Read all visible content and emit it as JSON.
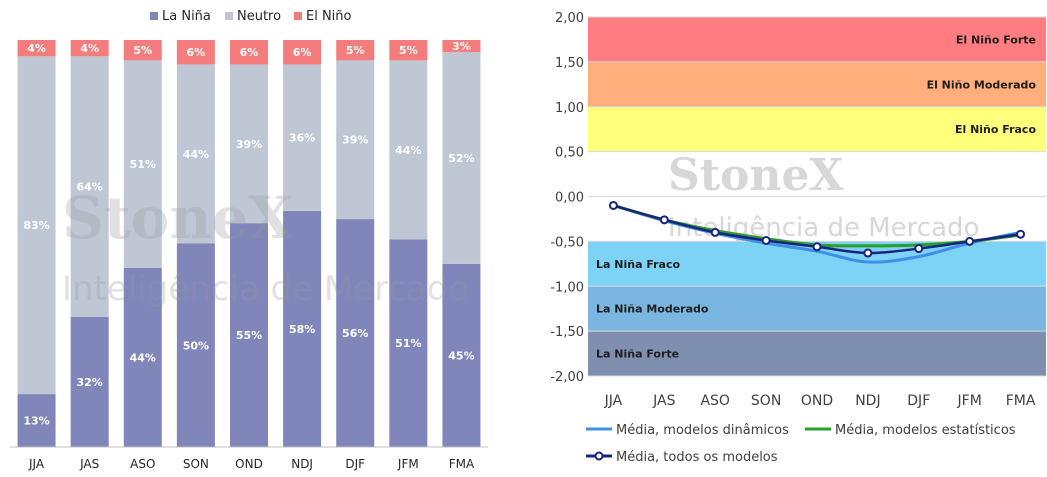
{
  "chart_data": [
    {
      "type": "bar",
      "stacked": true,
      "percent": true,
      "categories": [
        "JJA",
        "JAS",
        "ASO",
        "SON",
        "OND",
        "NDJ",
        "DJF",
        "JFM",
        "FMA"
      ],
      "series": [
        {
          "name": "La Niña",
          "color": "#8085ba",
          "values": [
            13,
            32,
            44,
            50,
            55,
            58,
            56,
            51,
            45
          ]
        },
        {
          "name": "Neutro",
          "color": "#bfc7d5",
          "values": [
            83,
            64,
            51,
            44,
            39,
            36,
            39,
            44,
            52
          ]
        },
        {
          "name": "El Niño",
          "color": "#f47c7c",
          "values": [
            4,
            4,
            5,
            6,
            6,
            6,
            5,
            5,
            3
          ]
        }
      ],
      "data_labels": true,
      "label_suffix": "%",
      "legend_position": "top",
      "ylim": [
        0,
        100
      ],
      "watermark": {
        "line1": "StoneX",
        "line2": "Inteligência de Mercado"
      }
    },
    {
      "type": "line",
      "categories": [
        "JJA",
        "JAS",
        "ASO",
        "SON",
        "OND",
        "NDJ",
        "DJF",
        "JFM",
        "FMA"
      ],
      "y_ticks": [
        "2,00",
        "1,50",
        "1,00",
        "0,50",
        "0,00",
        "-0,50",
        "-1,00",
        "-1,50",
        "-2,00"
      ],
      "ylim": [
        -2.0,
        2.0
      ],
      "bands": [
        {
          "label": "El Niño Forte",
          "from": 1.5,
          "to": 2.0,
          "color": "#ff7c80"
        },
        {
          "label": "El Niño Moderado",
          "from": 1.0,
          "to": 1.5,
          "color": "#ffae7c"
        },
        {
          "label": "El Niño Fraco",
          "from": 0.5,
          "to": 1.0,
          "color": "#ffff7c"
        },
        {
          "label": "La Niña Fraco",
          "from": -1.0,
          "to": -0.5,
          "color": "#7dd3f5"
        },
        {
          "label": "La Niña Moderado",
          "from": -1.5,
          "to": -1.0,
          "color": "#7ab6e0"
        },
        {
          "label": "La Niña Forte",
          "from": -2.0,
          "to": -1.5,
          "color": "#7e8faf"
        }
      ],
      "series": [
        {
          "name": "Média, modelos dinâmicos",
          "color": "#3e8fe6",
          "values": [
            -0.1,
            -0.27,
            -0.41,
            -0.52,
            -0.61,
            -0.73,
            -0.67,
            -0.52,
            -0.4
          ]
        },
        {
          "name": "Média, modelos estatísticos",
          "color": "#2a9d2a",
          "values": [
            -0.1,
            -0.26,
            -0.38,
            -0.47,
            -0.54,
            -0.55,
            -0.54,
            -0.5,
            -0.43
          ]
        },
        {
          "name": "Média, todos os modelos",
          "color": "#1a237e",
          "values": [
            -0.1,
            -0.26,
            -0.4,
            -0.49,
            -0.56,
            -0.63,
            -0.58,
            -0.5,
            -0.42
          ],
          "markers": true
        }
      ],
      "legend_position": "bottom",
      "watermark": {
        "line1": "StoneX",
        "line2": "Inteligência de Mercado"
      }
    }
  ]
}
